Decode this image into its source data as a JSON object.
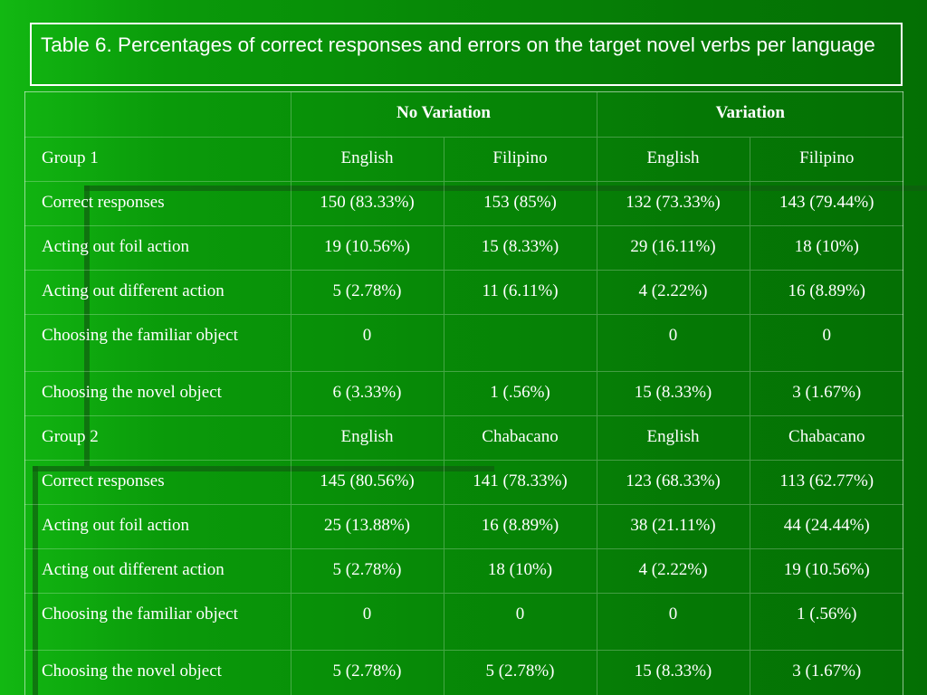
{
  "title": "Table 6. Percentages of correct responses and errors on the target novel verbs per language",
  "table": {
    "header": {
      "empty": "",
      "no_variation": "No Variation",
      "variation": "Variation"
    },
    "rows": [
      [
        "Group 1",
        "English",
        "Filipino",
        "English",
        "Filipino"
      ],
      [
        "Correct responses",
        "150 (83.33%)",
        "153 (85%)",
        "132 (73.33%)",
        "143 (79.44%)"
      ],
      [
        "Acting out foil action",
        "19 (10.56%)",
        "15 (8.33%)",
        "29 (16.11%)",
        "18 (10%)"
      ],
      [
        "Acting out different action",
        "5 (2.78%)",
        "11 (6.11%)",
        "4 (2.22%)",
        "16 (8.89%)"
      ],
      [
        "Choosing the familiar object",
        "0",
        "",
        "0",
        "0"
      ],
      [
        "Choosing the novel object",
        "6 (3.33%)",
        "1 (.56%)",
        "15 (8.33%)",
        "3 (1.67%)"
      ],
      [
        "Group 2",
        "English",
        "Chabacano",
        "English",
        "Chabacano"
      ],
      [
        "Correct responses",
        "145 (80.56%)",
        "141 (78.33%)",
        "123 (68.33%)",
        "113 (62.77%)"
      ],
      [
        "Acting out foil action",
        "25 (13.88%)",
        "16 (8.89%)",
        "38 (21.11%)",
        "44 (24.44%)"
      ],
      [
        "Acting out different action",
        "5 (2.78%)",
        "18 (10%)",
        "4 (2.22%)",
        "19 (10.56%)"
      ],
      [
        "Choosing the familiar object",
        "0",
        "0",
        "0",
        "1 (.56%)"
      ],
      [
        "Choosing the novel object",
        "5 (2.78%)",
        "5 (2.78%)",
        "15 (8.33%)",
        "3 (1.67%)"
      ]
    ]
  },
  "colors": {
    "background": "#078a07",
    "text": "#ffffff",
    "decor_line": "#0f5e0f"
  }
}
